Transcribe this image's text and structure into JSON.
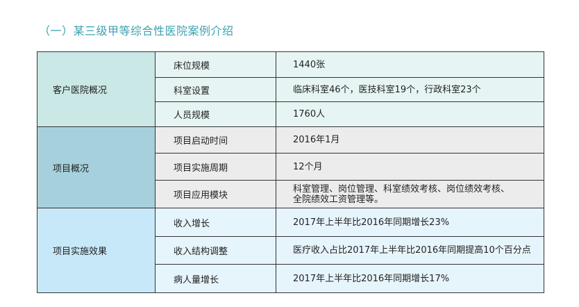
{
  "title": "（一）某三级甲等综合性医院案例介绍",
  "groups": [
    {
      "label": "客户医院概况",
      "rows": [
        {
          "item": "床位规模",
          "value": "1440张"
        },
        {
          "item": "科室设置",
          "value": "临床科室46个，医技科室19个，行政科室23个"
        },
        {
          "item": "人员规模",
          "value": "1760人"
        }
      ]
    },
    {
      "label": "项目概况",
      "rows": [
        {
          "item": "项目启动时间",
          "value": "2016年1月"
        },
        {
          "item": "项目实施周期",
          "value": "12个月"
        },
        {
          "item": "项目应用模块",
          "value": "科室管理、岗位管理、科室绩效考核、岗位绩效考核、",
          "value2": "全院绩效工资管理等。"
        }
      ]
    },
    {
      "label": "项目实施效果",
      "rows": [
        {
          "item": "收入增长",
          "value": "2017年上半年比2016年同期增长23%"
        },
        {
          "item": "收入结构调整",
          "value": "医疗收入占比2017年上半年比2016年同期提高10个百分点"
        },
        {
          "item": "病人量增长",
          "value": "2017年上半年比2016年同期增长17%"
        }
      ]
    }
  ]
}
